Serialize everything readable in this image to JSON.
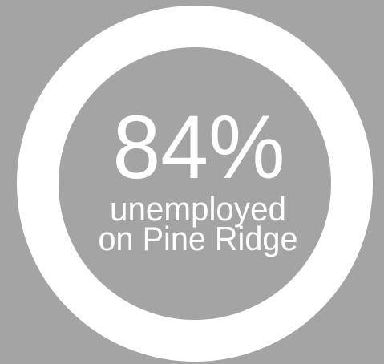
{
  "stat": {
    "value": "84%",
    "lines": [
      "unemployed",
      "on Pine Ridge"
    ]
  }
}
